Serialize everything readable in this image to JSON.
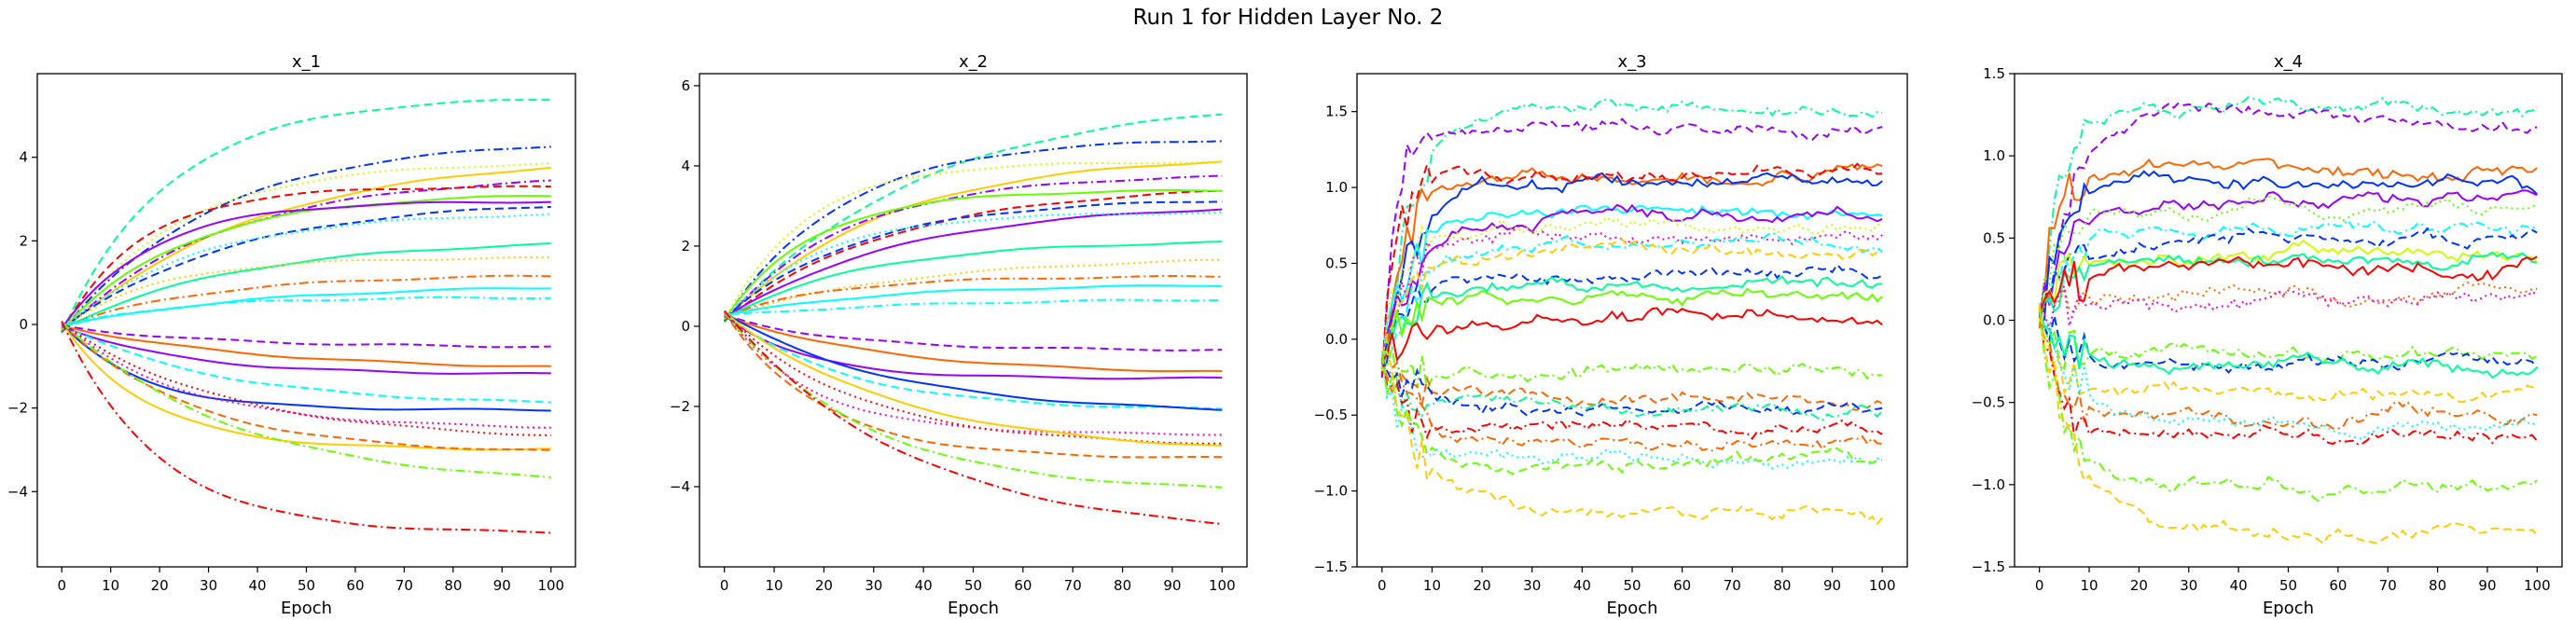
{
  "figure": {
    "title": "Run 1 for Hidden Layer No. 2"
  },
  "colors": [
    "#ff0000",
    "#ff6600",
    "#ffcc00",
    "#ccff00",
    "#66ff00",
    "#00ff33",
    "#00ff99",
    "#00ffff",
    "#0099ff",
    "#0033ff",
    "#3300ff",
    "#9900ff",
    "#ff00cc"
  ],
  "chart_data": [
    {
      "type": "line",
      "title": "x_1",
      "xlabel": "Epoch",
      "ylabel": "",
      "x_ticks": [
        0,
        10,
        20,
        30,
        40,
        50,
        60,
        70,
        80,
        90,
        100
      ],
      "y_ticks": [
        -4,
        -2,
        0,
        2,
        4
      ],
      "xlim": [
        -5,
        105
      ],
      "ylim": [
        -5.8,
        6.0
      ],
      "grid": false,
      "series": [
        {
          "color": "#00ff99",
          "style": "dashed",
          "final": 5.45
        },
        {
          "color": "#0033ff",
          "style": "dashdot",
          "final": 4.45
        },
        {
          "color": "#ffcc00",
          "style": "solid",
          "final": 4.1
        },
        {
          "color": "#ccff00",
          "style": "dotted",
          "final": 3.9
        },
        {
          "color": "#9900ff",
          "style": "dashdot",
          "final": 3.6
        },
        {
          "color": "#ff0000",
          "style": "dashed",
          "final": 3.3
        },
        {
          "color": "#66ff00",
          "style": "solid",
          "final": 3.15
        },
        {
          "color": "#0033ff",
          "style": "dashed",
          "final": 3.0
        },
        {
          "color": "#9900ff",
          "style": "solid",
          "final": 2.95
        },
        {
          "color": "#00ffff",
          "style": "dotted",
          "final": 2.7
        },
        {
          "color": "#00ff99",
          "style": "solid",
          "final": 2.05
        },
        {
          "color": "#ffcc00",
          "style": "dotted",
          "final": 1.6
        },
        {
          "color": "#ff6600",
          "style": "dashdot",
          "final": 1.2
        },
        {
          "color": "#00ffff",
          "style": "solid",
          "final": 0.95
        },
        {
          "color": "#00ffff",
          "style": "dashdot",
          "final": 0.65
        },
        {
          "color": "#9900ff",
          "style": "dashed",
          "final": -0.55
        },
        {
          "color": "#ff6600",
          "style": "solid",
          "final": -1.1
        },
        {
          "color": "#9900ff",
          "style": "solid",
          "final": -1.2
        },
        {
          "color": "#00ffff",
          "style": "dashed",
          "final": -1.95
        },
        {
          "color": "#0033ff",
          "style": "solid",
          "final": -2.05
        },
        {
          "color": "#ff00cc",
          "style": "dotted",
          "final": -2.5
        },
        {
          "color": "#ff0000",
          "style": "dotted",
          "final": -2.8
        },
        {
          "color": "#ffcc00",
          "style": "solid",
          "final": -3.0
        },
        {
          "color": "#ff6600",
          "style": "dashed",
          "final": -3.1
        },
        {
          "color": "#66ff00",
          "style": "dashdot",
          "final": -3.9
        },
        {
          "color": "#ff0000",
          "style": "dashdot",
          "final": -5.0
        }
      ]
    },
    {
      "type": "line",
      "title": "x_2",
      "xlabel": "Epoch",
      "ylabel": "",
      "x_ticks": [
        0,
        10,
        20,
        30,
        40,
        50,
        60,
        70,
        80,
        90,
        100
      ],
      "y_ticks": [
        -4,
        -2,
        0,
        2,
        4,
        6
      ],
      "xlim": [
        -5,
        105
      ],
      "ylim": [
        -6.0,
        6.3
      ],
      "grid": false,
      "series": [
        {
          "color": "#00ff99",
          "style": "dashed",
          "final": 5.75
        },
        {
          "color": "#0033ff",
          "style": "dashdot",
          "final": 4.7
        },
        {
          "color": "#ffcc00",
          "style": "solid",
          "final": 4.3
        },
        {
          "color": "#ccff00",
          "style": "dotted",
          "final": 4.1
        },
        {
          "color": "#9900ff",
          "style": "dashdot",
          "final": 3.8
        },
        {
          "color": "#ff0000",
          "style": "dashed",
          "final": 3.55
        },
        {
          "color": "#66ff00",
          "style": "solid",
          "final": 3.4
        },
        {
          "color": "#0033ff",
          "style": "dashed",
          "final": 3.2
        },
        {
          "color": "#9900ff",
          "style": "solid",
          "final": 3.1
        },
        {
          "color": "#00ffff",
          "style": "dotted",
          "final": 2.85
        },
        {
          "color": "#00ff99",
          "style": "solid",
          "final": 2.15
        },
        {
          "color": "#ffcc00",
          "style": "dotted",
          "final": 1.75
        },
        {
          "color": "#ff6600",
          "style": "dashdot",
          "final": 1.25
        },
        {
          "color": "#00ffff",
          "style": "solid",
          "final": 1.05
        },
        {
          "color": "#00ffff",
          "style": "dashdot",
          "final": 0.7
        },
        {
          "color": "#9900ff",
          "style": "dashed",
          "final": -0.6
        },
        {
          "color": "#ff6600",
          "style": "solid",
          "final": -1.2
        },
        {
          "color": "#9900ff",
          "style": "solid",
          "final": -1.3
        },
        {
          "color": "#00ffff",
          "style": "dashed",
          "final": -2.1
        },
        {
          "color": "#0033ff",
          "style": "solid",
          "final": -2.2
        },
        {
          "color": "#ff00cc",
          "style": "dotted",
          "final": -2.7
        },
        {
          "color": "#ff0000",
          "style": "dotted",
          "final": -3.0
        },
        {
          "color": "#ffcc00",
          "style": "solid",
          "final": -3.2
        },
        {
          "color": "#ff6600",
          "style": "dashed",
          "final": -3.3
        },
        {
          "color": "#66ff00",
          "style": "dashdot",
          "final": -4.15
        },
        {
          "color": "#ff0000",
          "style": "dashdot",
          "final": -5.3
        }
      ]
    },
    {
      "type": "line",
      "title": "x_3",
      "xlabel": "Epoch",
      "ylabel": "",
      "x_ticks": [
        0,
        10,
        20,
        30,
        40,
        50,
        60,
        70,
        80,
        90,
        100
      ],
      "y_ticks": [
        -1.5,
        -1.0,
        -0.5,
        0.0,
        0.5,
        1.0,
        1.5
      ],
      "xlim": [
        -5,
        105
      ],
      "ylim": [
        -1.5,
        1.75
      ],
      "grid": false,
      "series": [
        {
          "color": "#00ff99",
          "style": "dashdot",
          "final": 1.55
        },
        {
          "color": "#9900ff",
          "style": "dashed",
          "final": 1.4
        },
        {
          "color": "#ff6600",
          "style": "solid",
          "final": 1.05
        },
        {
          "color": "#0033ff",
          "style": "solid",
          "final": 1.05
        },
        {
          "color": "#ff0000",
          "style": "dashed",
          "final": 1.07
        },
        {
          "color": "#00ffff",
          "style": "solid",
          "final": 0.85
        },
        {
          "color": "#9900ff",
          "style": "solid",
          "final": 0.8
        },
        {
          "color": "#ccff00",
          "style": "dotted",
          "final": 0.72
        },
        {
          "color": "#ff00cc",
          "style": "dotted",
          "final": 0.68
        },
        {
          "color": "#00ffff",
          "style": "dashdot",
          "final": 0.62
        },
        {
          "color": "#ffcc00",
          "style": "dashed",
          "final": 0.6
        },
        {
          "color": "#0033ff",
          "style": "dashed",
          "final": 0.42
        },
        {
          "color": "#00ff99",
          "style": "solid",
          "final": 0.35
        },
        {
          "color": "#66ff00",
          "style": "solid",
          "final": 0.28
        },
        {
          "color": "#ff0000",
          "style": "solid",
          "final": 0.12
        },
        {
          "color": "#66ff00",
          "style": "dashdot",
          "final": -0.22
        },
        {
          "color": "#ff6600",
          "style": "dashed",
          "final": -0.38
        },
        {
          "color": "#0033ff",
          "style": "dashed",
          "final": -0.45
        },
        {
          "color": "#00ff99",
          "style": "dashdot",
          "final": -0.45
        },
        {
          "color": "#ff0000",
          "style": "dashdot",
          "final": -0.55
        },
        {
          "color": "#ff6600",
          "style": "dashdot",
          "final": -0.72
        },
        {
          "color": "#00ffff",
          "style": "dotted",
          "final": -0.78
        },
        {
          "color": "#66ff00",
          "style": "dashed",
          "final": -0.82
        },
        {
          "color": "#ffcc00",
          "style": "dashed",
          "final": -1.15
        }
      ]
    },
    {
      "type": "line",
      "title": "x_4",
      "xlabel": "Epoch",
      "ylabel": "",
      "x_ticks": [
        0,
        10,
        20,
        30,
        40,
        50,
        60,
        70,
        80,
        90,
        100
      ],
      "y_ticks": [
        -1.5,
        -1.0,
        -0.5,
        0.0,
        0.5,
        1.0,
        1.5
      ],
      "xlim": [
        -5,
        105
      ],
      "ylim": [
        -1.5,
        1.5
      ],
      "grid": false,
      "series": [
        {
          "color": "#00ff99",
          "style": "dashdot",
          "final": 1.3
        },
        {
          "color": "#9900ff",
          "style": "dashed",
          "final": 1.25
        },
        {
          "color": "#ff6600",
          "style": "solid",
          "final": 0.92
        },
        {
          "color": "#0033ff",
          "style": "solid",
          "final": 0.85
        },
        {
          "color": "#9900ff",
          "style": "solid",
          "final": 0.72
        },
        {
          "color": "#66ff00",
          "style": "dotted",
          "final": 0.65
        },
        {
          "color": "#00ffff",
          "style": "dashdot",
          "final": 0.55
        },
        {
          "color": "#0033ff",
          "style": "dashed",
          "final": 0.5
        },
        {
          "color": "#ccff00",
          "style": "solid",
          "final": 0.42
        },
        {
          "color": "#00ff99",
          "style": "solid",
          "final": 0.38
        },
        {
          "color": "#ff0000",
          "style": "solid",
          "final": 0.32
        },
        {
          "color": "#ff6600",
          "style": "dotted",
          "final": 0.18
        },
        {
          "color": "#ff00cc",
          "style": "dotted",
          "final": 0.08
        },
        {
          "color": "#66ff00",
          "style": "dashdot",
          "final": -0.22
        },
        {
          "color": "#0033ff",
          "style": "dashed",
          "final": -0.25
        },
        {
          "color": "#00ff99",
          "style": "solid",
          "final": -0.28
        },
        {
          "color": "#ffcc00",
          "style": "dashed",
          "final": -0.42
        },
        {
          "color": "#ff6600",
          "style": "dashdot",
          "final": -0.58
        },
        {
          "color": "#00ffff",
          "style": "dotted",
          "final": -0.62
        },
        {
          "color": "#ff0000",
          "style": "dashdot",
          "final": -0.68
        },
        {
          "color": "#66ff00",
          "style": "dashdot",
          "final": -1.0
        },
        {
          "color": "#ffcc00",
          "style": "dashed",
          "final": -1.3
        }
      ]
    }
  ]
}
